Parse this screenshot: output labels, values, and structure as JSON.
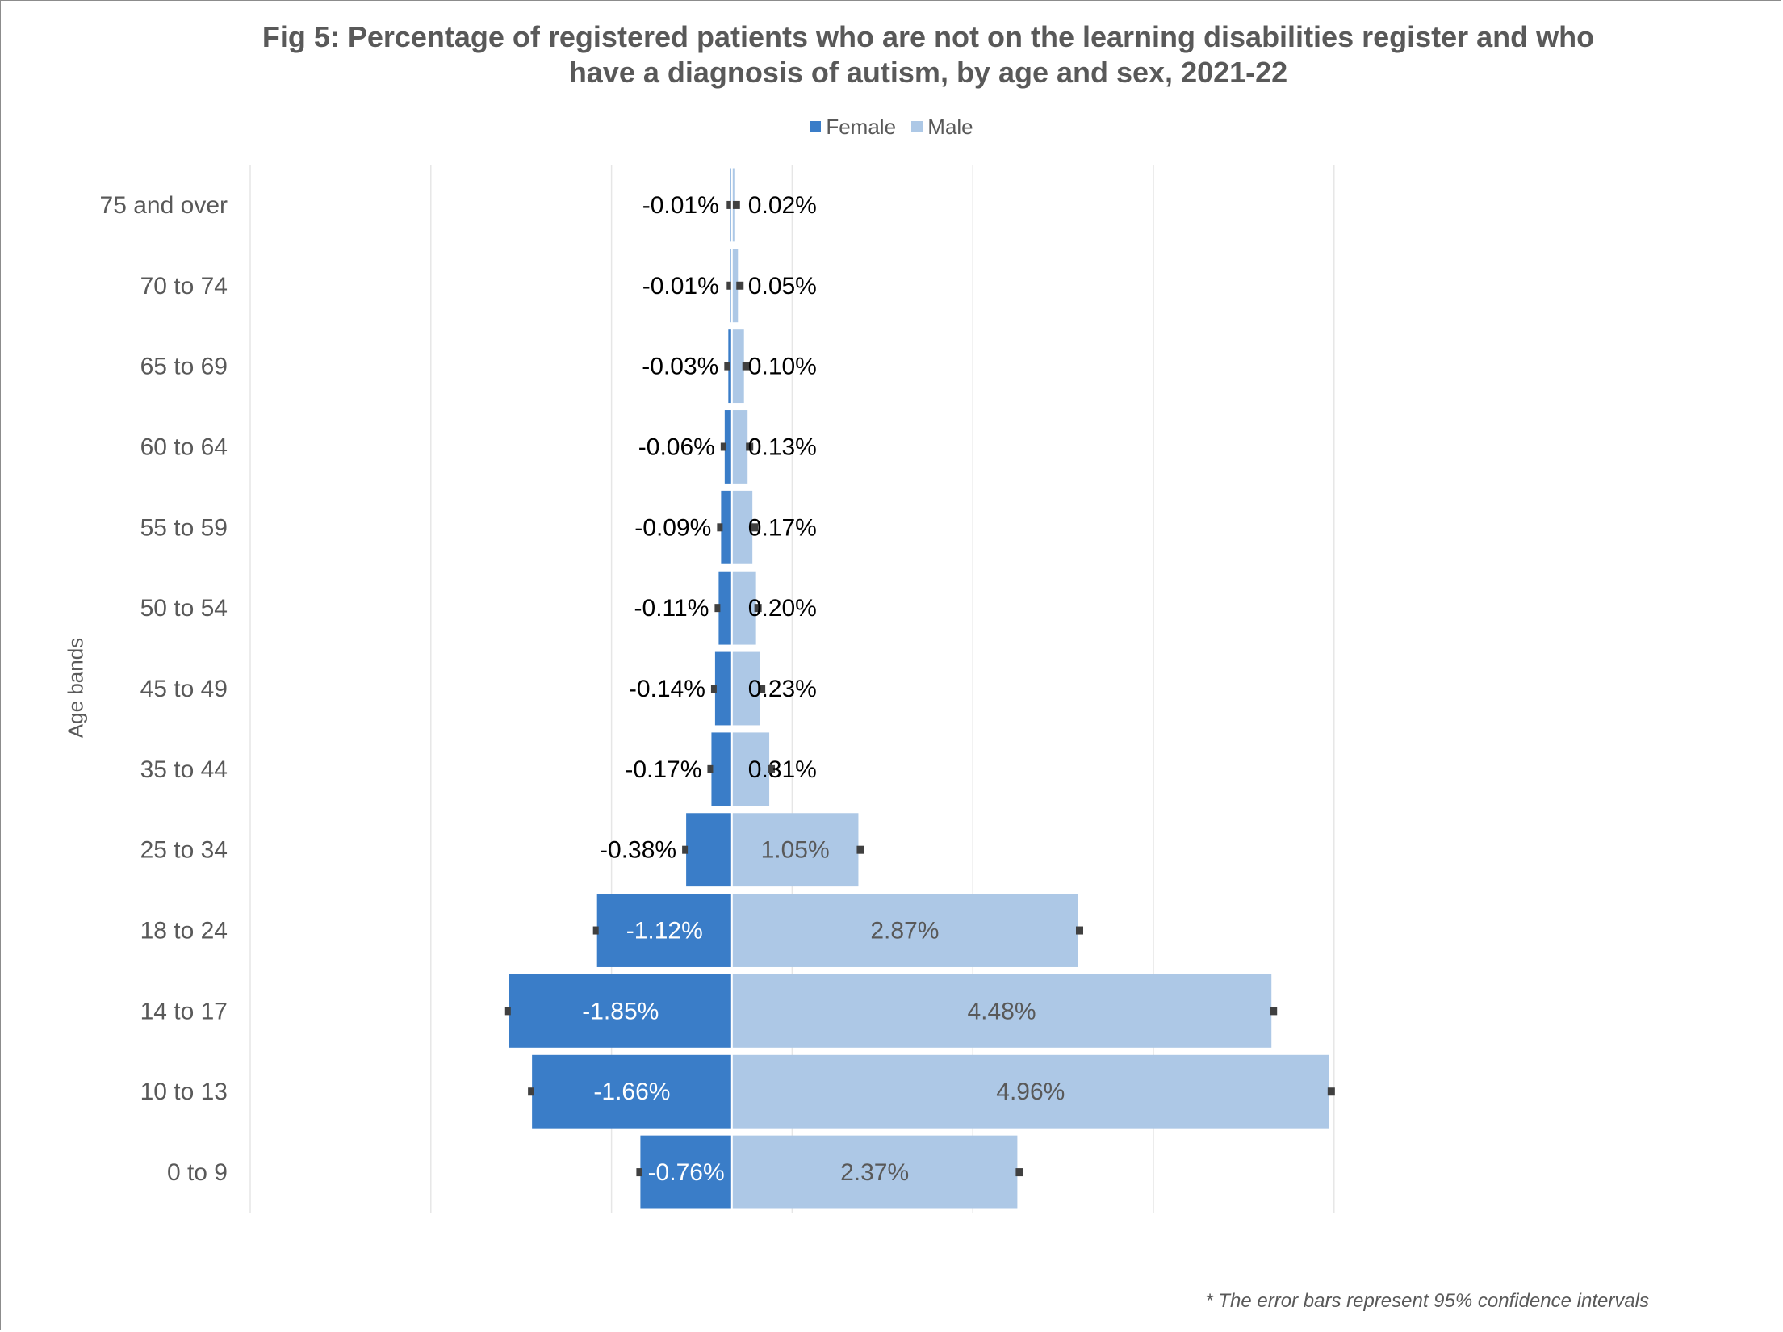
{
  "title_line1": "Fig 5: Percentage of registered patients who are not on the learning disabilities register and who",
  "title_line2": "have a diagnosis of autism, by age and sex, 2021-22",
  "legend": {
    "female": "Female",
    "male": "Male"
  },
  "ylabel": "Age bands",
  "footnote": "* The error bars represent 95% confidence intervals",
  "colors": {
    "female": "#3a7dc8",
    "male": "#adc8e6",
    "error_bar": "#404040",
    "text": "#595959",
    "grid": "#e6e6e6"
  },
  "chart_data": {
    "type": "bar",
    "orientation": "horizontal",
    "categories": [
      "75 and over",
      "70 to 74",
      "65 to 69",
      "60 to 64",
      "55 to 59",
      "50 to 54",
      "45 to 49",
      "35 to 44",
      "25 to 34",
      "18 to 24",
      "14 to 17",
      "10 to 13",
      "0 to 9"
    ],
    "series": [
      {
        "name": "Female",
        "values": [
          -0.01,
          -0.01,
          -0.03,
          -0.06,
          -0.09,
          -0.11,
          -0.14,
          -0.17,
          -0.38,
          -1.12,
          -1.85,
          -1.66,
          -0.76
        ],
        "labels": [
          "-0.01%",
          "-0.01%",
          "-0.03%",
          "-0.06%",
          "-0.09%",
          "-0.11%",
          "-0.14%",
          "-0.17%",
          "-0.38%",
          "-1.12%",
          "-1.85%",
          "-1.66%",
          "-0.76%"
        ]
      },
      {
        "name": "Male",
        "values": [
          0.02,
          0.05,
          0.1,
          0.13,
          0.17,
          0.2,
          0.23,
          0.31,
          1.05,
          2.87,
          4.48,
          4.96,
          2.37
        ],
        "labels": [
          "0.02%",
          "0.05%",
          "0.10%",
          "0.13%",
          "0.17%",
          "0.20%",
          "0.23%",
          "0.31%",
          "1.05%",
          "2.87%",
          "4.48%",
          "4.96%",
          "2.37%"
        ]
      }
    ],
    "error_bars": "95% confidence intervals",
    "xlim": [
      -4,
      6
    ],
    "xlabel": "",
    "ylabel": "Age bands",
    "grid": true,
    "legend_position": "top"
  }
}
